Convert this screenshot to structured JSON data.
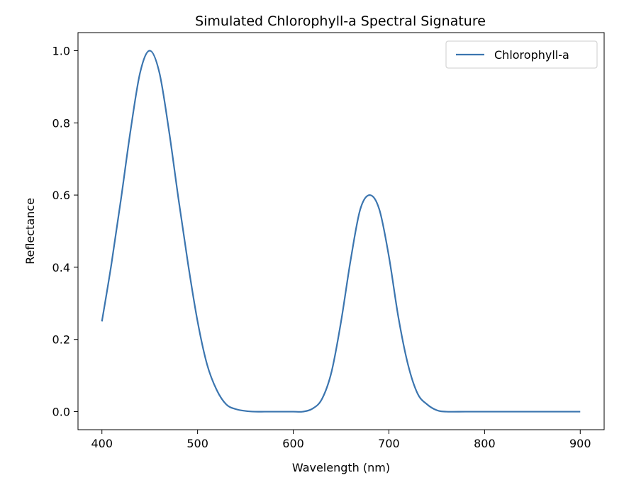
{
  "chart_data": {
    "type": "line",
    "title": "Simulated Chlorophyll-a Spectral Signature",
    "xlabel": "Wavelength (nm)",
    "ylabel": "Reflectance",
    "xlim": [
      375,
      925
    ],
    "ylim": [
      -0.05,
      1.05
    ],
    "xticks": [
      400,
      500,
      600,
      700,
      800,
      900
    ],
    "xtick_labels": [
      "400",
      "500",
      "600",
      "700",
      "800",
      "900"
    ],
    "yticks": [
      0.0,
      0.2,
      0.4,
      0.6,
      0.8,
      1.0
    ],
    "ytick_labels": [
      "0.0",
      "0.2",
      "0.4",
      "0.6",
      "0.8",
      "1.0"
    ],
    "grid": false,
    "legend_position": "upper right",
    "series": [
      {
        "name": "Chlorophyll-a",
        "color": "#3b75af",
        "x": [
          400,
          410,
          420,
          430,
          440,
          450,
          460,
          470,
          480,
          490,
          500,
          510,
          520,
          530,
          540,
          550,
          560,
          570,
          580,
          590,
          600,
          610,
          620,
          630,
          640,
          650,
          660,
          670,
          680,
          690,
          700,
          710,
          720,
          730,
          740,
          750,
          760,
          780,
          800,
          820,
          850,
          900
        ],
        "y": [
          0.25,
          0.41,
          0.59,
          0.78,
          0.94,
          1.0,
          0.94,
          0.78,
          0.59,
          0.41,
          0.25,
          0.13,
          0.06,
          0.02,
          0.007,
          0.002,
          0.0,
          0.0,
          0.0,
          0.0,
          0.0,
          0.0,
          0.008,
          0.035,
          0.11,
          0.25,
          0.42,
          0.56,
          0.6,
          0.56,
          0.43,
          0.26,
          0.13,
          0.05,
          0.02,
          0.004,
          0.0,
          0.0,
          0.0,
          0.0,
          0.0,
          0.0
        ]
      }
    ]
  }
}
